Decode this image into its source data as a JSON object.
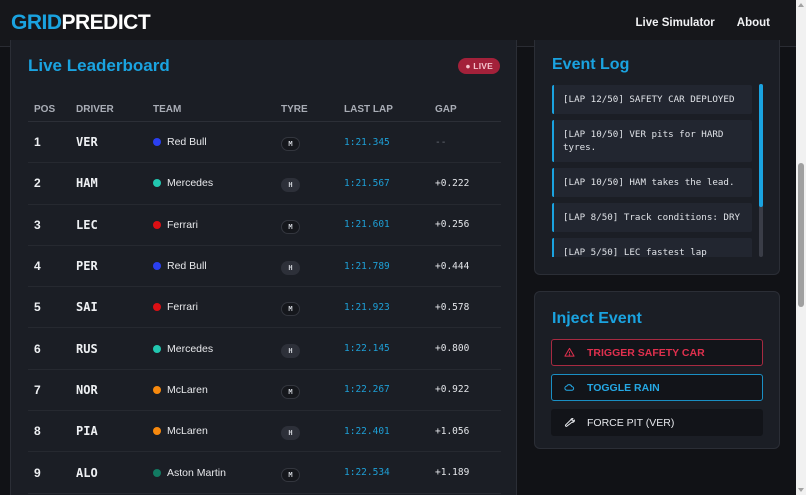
{
  "app": {
    "logo_part1": "GRID",
    "logo_part2": "PREDICT",
    "nav": [
      {
        "label": "Live Simulator"
      },
      {
        "label": "About"
      }
    ]
  },
  "leaderboard": {
    "title": "Live Leaderboard",
    "live_badge": "● LIVE",
    "columns": [
      "POS",
      "DRIVER",
      "TEAM",
      "TYRE",
      "LAST LAP",
      "GAP"
    ],
    "rows": [
      {
        "pos": "1",
        "driver": "VER",
        "team": "Red Bull",
        "team_color": "#2a3ff0",
        "tyre": "M",
        "last_lap": "1:21.345",
        "gap": "--"
      },
      {
        "pos": "2",
        "driver": "HAM",
        "team": "Mercedes",
        "team_color": "#22c7b0",
        "tyre": "H",
        "last_lap": "1:21.567",
        "gap": "+0.222"
      },
      {
        "pos": "3",
        "driver": "LEC",
        "team": "Ferrari",
        "team_color": "#dc0f14",
        "tyre": "M",
        "last_lap": "1:21.601",
        "gap": "+0.256"
      },
      {
        "pos": "4",
        "driver": "PER",
        "team": "Red Bull",
        "team_color": "#2a3ff0",
        "tyre": "H",
        "last_lap": "1:21.789",
        "gap": "+0.444"
      },
      {
        "pos": "5",
        "driver": "SAI",
        "team": "Ferrari",
        "team_color": "#dc0f14",
        "tyre": "M",
        "last_lap": "1:21.923",
        "gap": "+0.578"
      },
      {
        "pos": "6",
        "driver": "RUS",
        "team": "Mercedes",
        "team_color": "#22c7b0",
        "tyre": "H",
        "last_lap": "1:22.145",
        "gap": "+0.800"
      },
      {
        "pos": "7",
        "driver": "NOR",
        "team": "McLaren",
        "team_color": "#f7890e",
        "tyre": "M",
        "last_lap": "1:22.267",
        "gap": "+0.922"
      },
      {
        "pos": "8",
        "driver": "PIA",
        "team": "McLaren",
        "team_color": "#f7890e",
        "tyre": "H",
        "last_lap": "1:22.401",
        "gap": "+1.056"
      },
      {
        "pos": "9",
        "driver": "ALO",
        "team": "Aston Martin",
        "team_color": "#127a62",
        "tyre": "M",
        "last_lap": "1:22.534",
        "gap": "+1.189"
      }
    ]
  },
  "event_log": {
    "title": "Event Log",
    "items": [
      "[LAP 12/50] SAFETY CAR DEPLOYED",
      "[LAP 10/50] VER pits for HARD tyres.",
      "[LAP 10/50] HAM takes the lead.",
      "[LAP 8/50] Track conditions: DRY",
      "[LAP 5/50] LEC fastest lap"
    ]
  },
  "inject_event": {
    "title": "Inject Event",
    "buttons": [
      {
        "label": "TRIGGER SAFETY CAR",
        "icon": "warning-icon"
      },
      {
        "label": "TOGGLE RAIN",
        "icon": "cloud-icon"
      },
      {
        "label": "FORCE PIT (VER)",
        "icon": "wrench-icon"
      }
    ]
  },
  "colors": {
    "accent": "#1aa3e0",
    "danger": "#e0304e",
    "live_badge_bg": "#a3213a",
    "background": "#111216",
    "panel": "#1b1e25"
  }
}
